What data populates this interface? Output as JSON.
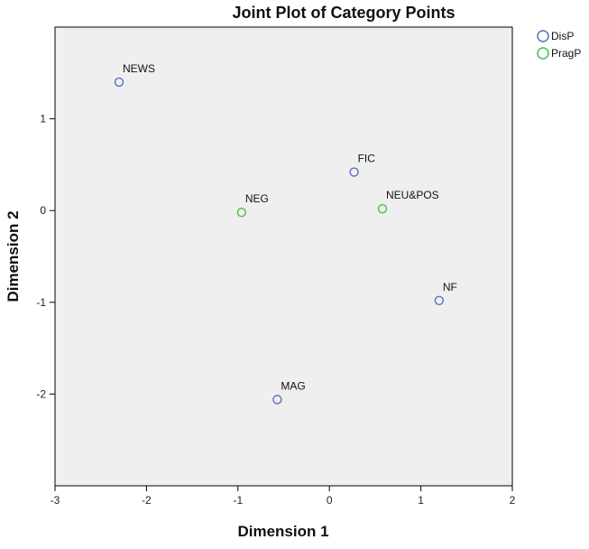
{
  "chart_data": {
    "type": "scatter",
    "title": "Joint Plot of Category Points",
    "xlabel": "Dimension 1",
    "ylabel": "Dimension 2",
    "xlim": [
      -3,
      2
    ],
    "ylim": [
      -3,
      2
    ],
    "xticks": [
      -3,
      -2,
      -1,
      0,
      1,
      2
    ],
    "yticks": [
      -2,
      -1,
      0,
      1
    ],
    "grid": false,
    "legend_position": "top-right",
    "plot_background": "#efefef",
    "series": [
      {
        "name": "DisP",
        "color": "#5a6fc0",
        "points": [
          {
            "label": "NEWS",
            "x": -2.3,
            "y": 1.4
          },
          {
            "label": "FIC",
            "x": 0.27,
            "y": 0.42
          },
          {
            "label": "NF",
            "x": 1.2,
            "y": -0.98
          },
          {
            "label": "MAG",
            "x": -0.57,
            "y": -2.06
          }
        ]
      },
      {
        "name": "PragP",
        "color": "#4cbb4c",
        "points": [
          {
            "label": "NEG",
            "x": -0.96,
            "y": -0.02
          },
          {
            "label": "NEU&POS",
            "x": 0.58,
            "y": 0.02
          }
        ]
      }
    ]
  }
}
